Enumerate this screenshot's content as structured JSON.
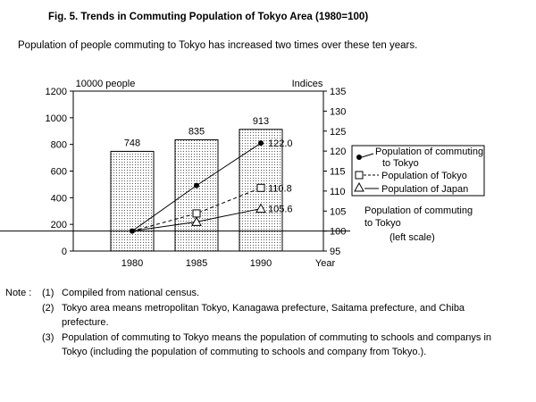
{
  "figure": {
    "title": "Fig. 5. Trends in Commuting Population of Tokyo Area (1980=100)",
    "subtitle": "Population of people commuting to Tokyo has increased two times over these ten years."
  },
  "chart_data": {
    "type": "bar",
    "x_label": "Year",
    "categories": [
      "1980",
      "1985",
      "1990"
    ],
    "left_axis": {
      "label": "10000 people",
      "ticks": [
        0,
        200,
        400,
        600,
        800,
        1000,
        1200
      ],
      "range": [
        0,
        1200
      ]
    },
    "right_axis": {
      "label": "Indices",
      "ticks": [
        95,
        100,
        105,
        110,
        115,
        120,
        125,
        130,
        135
      ],
      "range": [
        95,
        135
      ]
    },
    "bar_series": {
      "name": "Population of commuting to Tokyo",
      "values": [
        748,
        835,
        913
      ],
      "value_labels": [
        "748",
        "835",
        "913"
      ],
      "axis": "left"
    },
    "bar_note": {
      "line1": "Population of commuting",
      "line2": "to Tokyo",
      "line3": "(left scale)"
    },
    "line_series": [
      {
        "name": "Population of commuting to Tokyo",
        "marker": "filled-circle",
        "style": "solid",
        "values": [
          100,
          111.4,
          122.0
        ],
        "end_label": "122.0"
      },
      {
        "name": "Population of Tokyo",
        "marker": "open-square",
        "style": "dashed",
        "values": [
          100,
          104.4,
          110.8
        ],
        "end_label": "110.8"
      },
      {
        "name": "Population of Japan",
        "marker": "open-triangle",
        "style": "solid",
        "values": [
          100,
          102.3,
          105.6
        ],
        "end_label": "105.6"
      }
    ],
    "legend": {
      "placement": "right",
      "entries": [
        {
          "line1": "Population of  commuting",
          "line2": "to Tokyo"
        },
        {
          "line1": "Population of Tokyo"
        },
        {
          "line1": "Population of Japan"
        }
      ]
    }
  },
  "notes": {
    "label": "Note :",
    "items": [
      {
        "num": "(1)",
        "text": "Compiled from national census."
      },
      {
        "num": "(2)",
        "text": "Tokyo area means metropolitan Tokyo, Kanagawa prefecture, Saitama prefecture, and Chiba prefecture."
      },
      {
        "num": "(3)",
        "text": "Population of commuting to Tokyo means the population of commuting to schools and companys in Tokyo (including the population of commuting to schools and company from Tokyo.)."
      }
    ]
  }
}
